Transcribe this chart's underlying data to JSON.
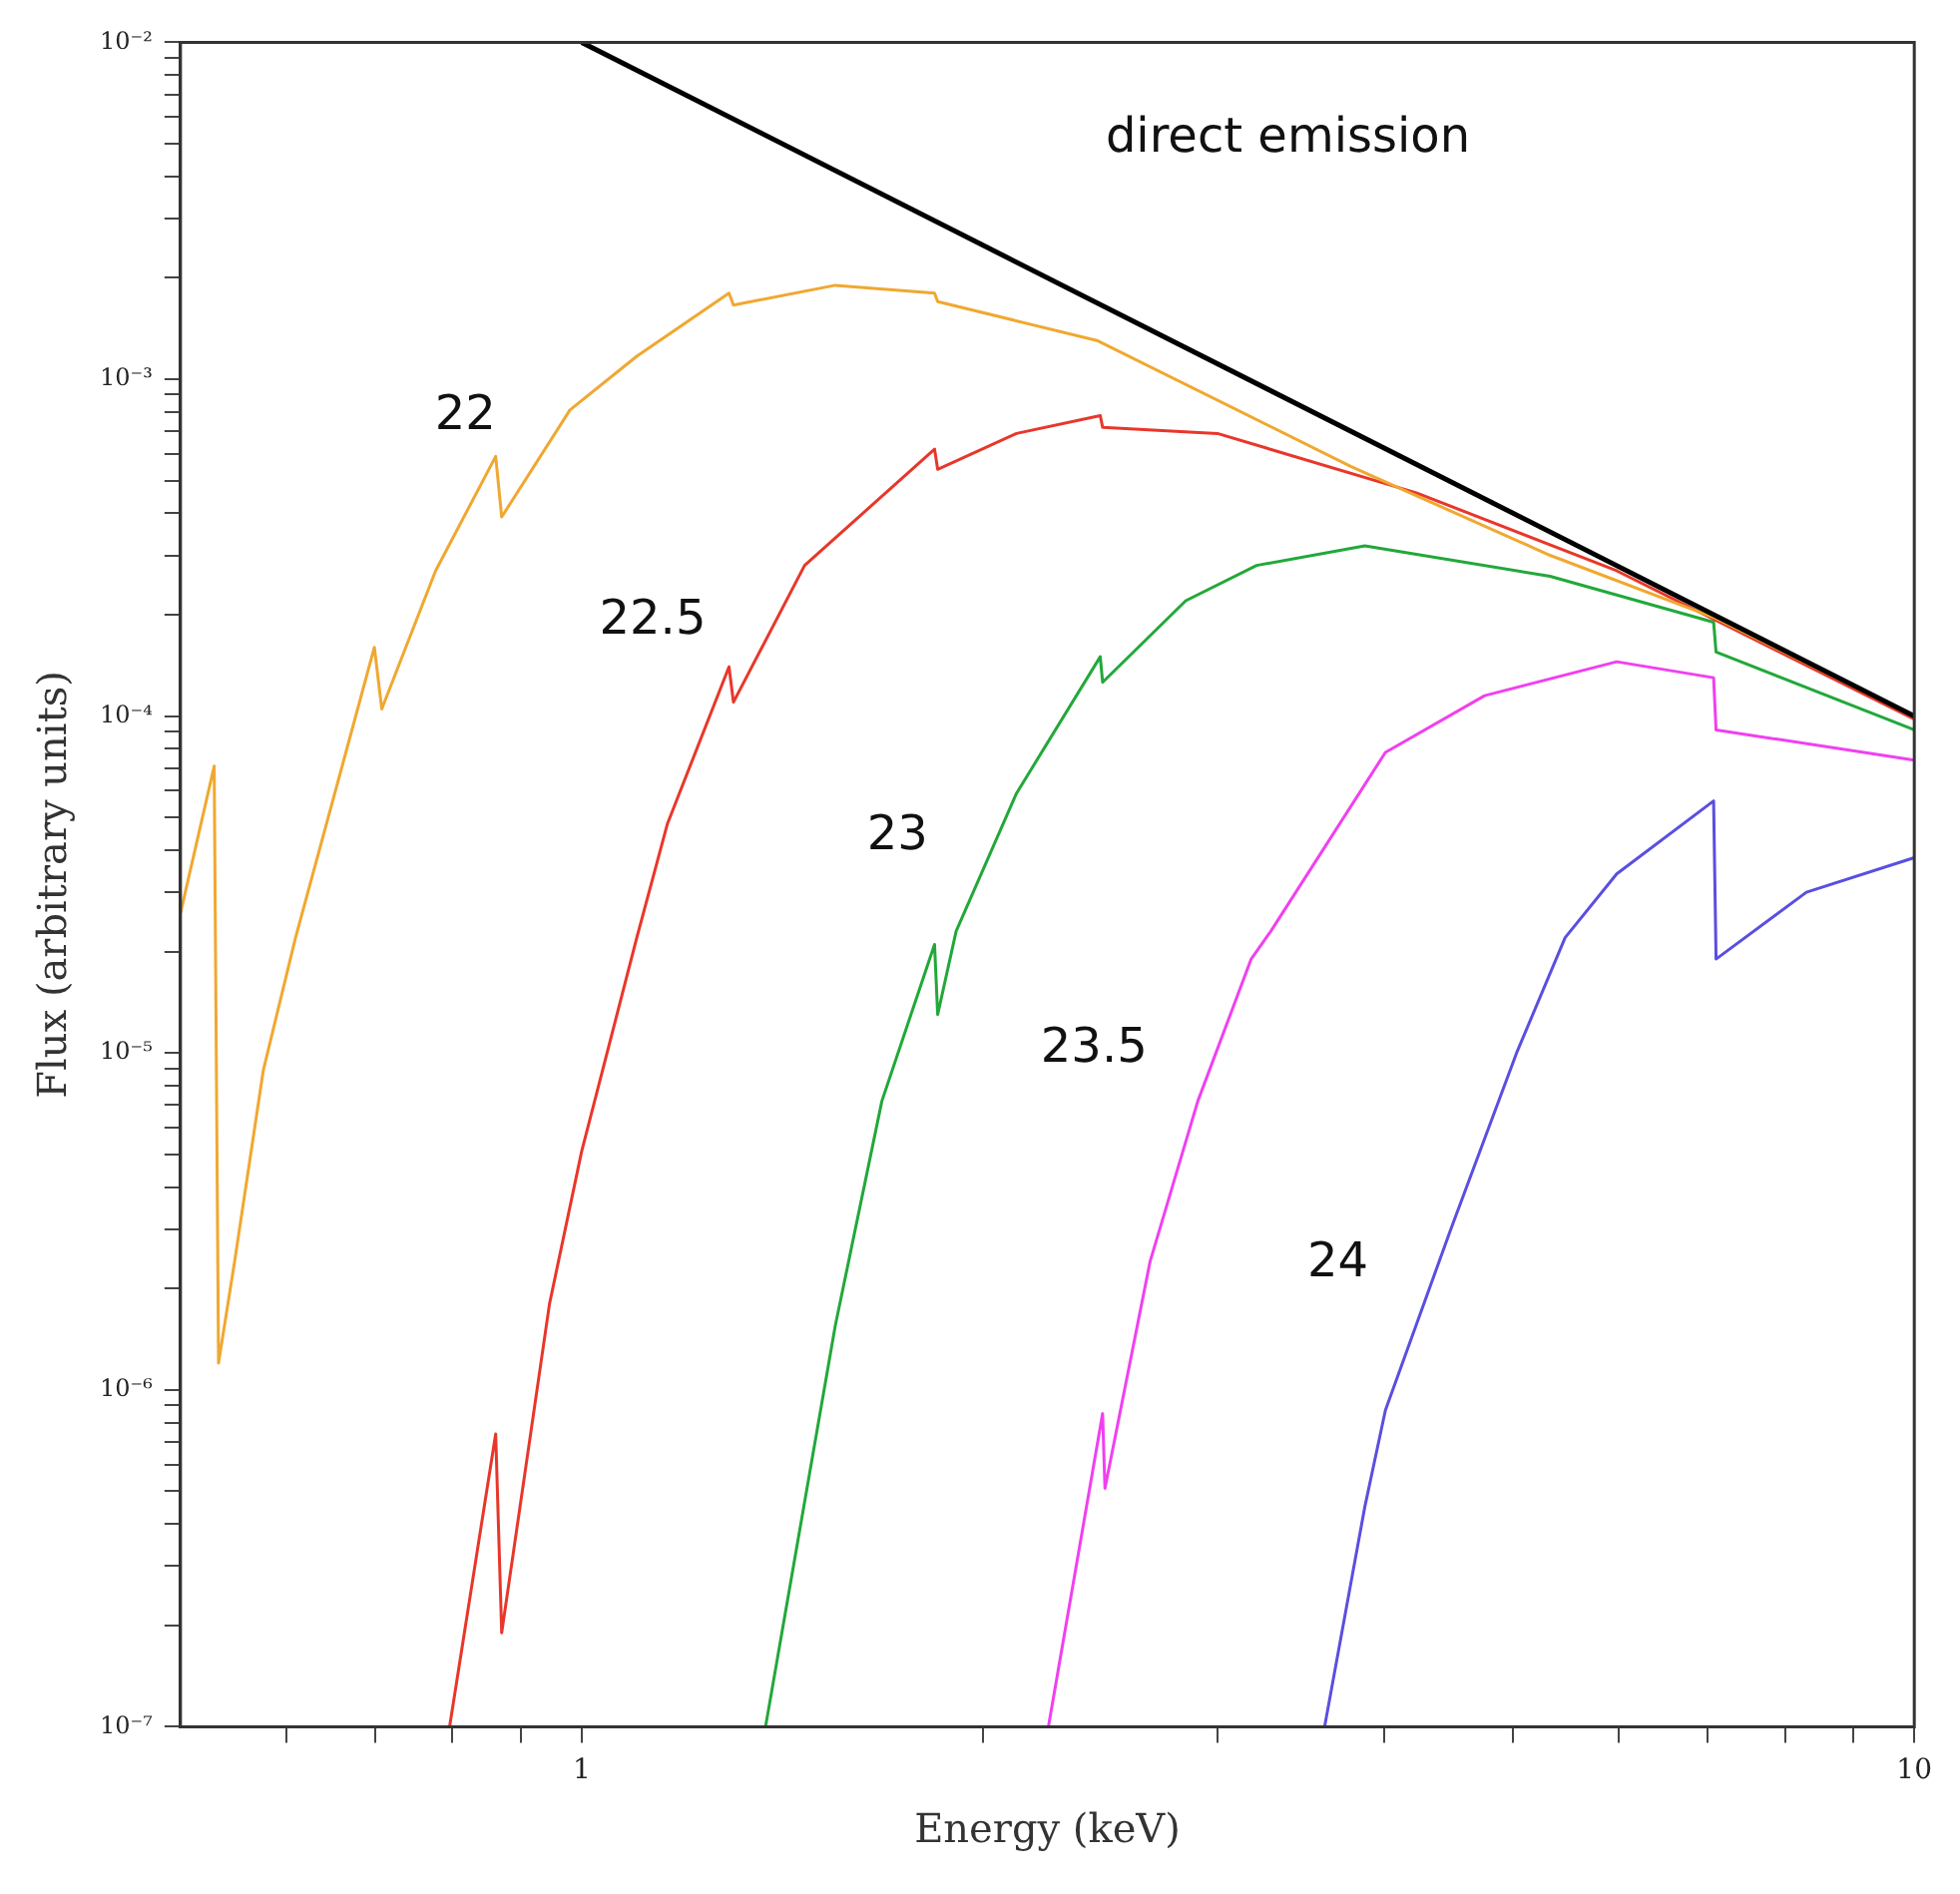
{
  "chart_data": {
    "type": "line",
    "xlabel": "Energy (keV)",
    "ylabel": "Flux (arbitrary units)",
    "log": "xy",
    "grid": false,
    "legend": false,
    "marker": "none",
    "line_style": "solid",
    "xlim": [
      0.5,
      10
    ],
    "ylim": [
      1e-07,
      0.01
    ],
    "xticks": [
      {
        "value": 0.6,
        "label": null
      },
      {
        "value": 0.7,
        "label": null
      },
      {
        "value": 0.8,
        "label": null
      },
      {
        "value": 0.9,
        "label": null
      },
      1,
      {
        "value": 2,
        "label": null
      },
      {
        "value": 3,
        "label": null
      },
      {
        "value": 4,
        "label": null
      },
      {
        "value": 5,
        "label": null
      },
      {
        "value": 6,
        "label": null
      },
      {
        "value": 7,
        "label": null
      },
      {
        "value": 8,
        "label": null
      },
      {
        "value": 9,
        "label": null
      },
      10
    ],
    "yticks": [
      {
        "value": 1e-07,
        "label": "10⁻⁷"
      },
      {
        "value": 2e-07,
        "label": null
      },
      {
        "value": 3e-07,
        "label": null
      },
      {
        "value": 4e-07,
        "label": null
      },
      {
        "value": 5e-07,
        "label": null
      },
      {
        "value": 6e-07,
        "label": null
      },
      {
        "value": 7e-07,
        "label": null
      },
      {
        "value": 8e-07,
        "label": null
      },
      {
        "value": 9e-07,
        "label": null
      },
      {
        "value": 1e-06,
        "label": "10⁻⁶"
      },
      {
        "value": 2e-06,
        "label": null
      },
      {
        "value": 3e-06,
        "label": null
      },
      {
        "value": 4e-06,
        "label": null
      },
      {
        "value": 5e-06,
        "label": null
      },
      {
        "value": 6e-06,
        "label": null
      },
      {
        "value": 7e-06,
        "label": null
      },
      {
        "value": 8e-06,
        "label": null
      },
      {
        "value": 9e-06,
        "label": null
      },
      {
        "value": 1e-05,
        "label": "10⁻⁵"
      },
      {
        "value": 2e-05,
        "label": null
      },
      {
        "value": 3e-05,
        "label": null
      },
      {
        "value": 4e-05,
        "label": null
      },
      {
        "value": 5e-05,
        "label": null
      },
      {
        "value": 6e-05,
        "label": null
      },
      {
        "value": 7e-05,
        "label": null
      },
      {
        "value": 8e-05,
        "label": null
      },
      {
        "value": 9e-05,
        "label": null
      },
      {
        "value": 0.0001,
        "label": "10⁻⁴"
      },
      {
        "value": 0.0002,
        "label": null
      },
      {
        "value": 0.0003,
        "label": null
      },
      {
        "value": 0.0004,
        "label": null
      },
      {
        "value": 0.0005,
        "label": null
      },
      {
        "value": 0.0006,
        "label": null
      },
      {
        "value": 0.0007,
        "label": null
      },
      {
        "value": 0.0008,
        "label": null
      },
      {
        "value": 0.0009,
        "label": null
      },
      {
        "value": 0.001,
        "label": "10⁻³"
      },
      {
        "value": 0.002,
        "label": null
      },
      {
        "value": 0.003,
        "label": null
      },
      {
        "value": 0.004,
        "label": null
      },
      {
        "value": 0.005,
        "label": null
      },
      {
        "value": 0.006,
        "label": null
      },
      {
        "value": 0.007,
        "label": null
      },
      {
        "value": 0.008,
        "label": null
      },
      {
        "value": 0.009,
        "label": null
      },
      {
        "value": 0.01,
        "label": "10⁻²"
      }
    ],
    "series": [
      {
        "name": "direct emission",
        "color": "#000000",
        "x": [
          1,
          10
        ],
        "values": [
          0.01,
          0.0001
        ]
      },
      {
        "name": "22",
        "color": "#f0a830",
        "x": [
          0.5,
          0.53,
          0.534,
          0.549,
          0.577,
          0.61,
          0.663,
          0.699,
          0.708,
          0.777,
          0.862,
          0.871,
          0.98,
          1.1,
          1.29,
          1.3,
          1.55,
          1.84,
          1.85,
          2.44,
          3.78,
          5.33,
          7.1,
          10
        ],
        "values": [
          2.6e-05,
          7.1e-05,
          1.2e-06,
          2.4e-06,
          8.9e-06,
          2.2e-05,
          7.4e-05,
          0.00016,
          0.000105,
          0.00027,
          0.00059,
          0.00039,
          0.00081,
          0.00117,
          0.0018,
          0.00166,
          0.0019,
          0.0018,
          0.0017,
          0.0013,
          0.00055,
          0.0003,
          0.000195,
          0.0001
        ]
      },
      {
        "name": "22.5",
        "color": "#e8372a",
        "x": [
          0.796,
          0.862,
          0.871,
          0.946,
          1.0,
          1.1,
          1.16,
          1.29,
          1.3,
          1.47,
          1.84,
          1.85,
          2.12,
          2.45,
          2.46,
          3.0,
          4.23,
          5.98,
          10
        ],
        "values": [
          1e-07,
          7.4e-07,
          1.9e-07,
          1.8e-06,
          5.1e-06,
          2.2e-05,
          4.8e-05,
          0.00014,
          0.00011,
          0.00028,
          0.00062,
          0.00054,
          0.00069,
          0.00078,
          0.00072,
          0.00069,
          0.00046,
          0.00027,
          9.8e-05
        ]
      },
      {
        "name": "23",
        "color": "#22a83a",
        "x": [
          1.374,
          1.55,
          1.68,
          1.84,
          1.85,
          1.91,
          2.12,
          2.45,
          2.46,
          2.84,
          3.21,
          3.87,
          5.33,
          7.07,
          7.1,
          10
        ],
        "values": [
          1e-07,
          1.55e-06,
          7.2e-06,
          2.1e-05,
          1.3e-05,
          2.3e-05,
          5.9e-05,
          0.00015,
          0.000126,
          0.00022,
          0.00028,
          0.00032,
          0.00026,
          0.00019,
          0.000155,
          9.1e-05
        ]
      },
      {
        "name": "23.5",
        "color": "#f040f0",
        "x": [
          2.24,
          2.46,
          2.47,
          2.67,
          2.9,
          3.18,
          3.29,
          4.01,
          4.76,
          5.98,
          7.07,
          7.1,
          10
        ],
        "values": [
          1e-07,
          8.5e-07,
          5.1e-07,
          2.4e-06,
          7.2e-06,
          1.9e-05,
          2.3e-05,
          7.8e-05,
          0.000115,
          0.000145,
          0.00013,
          9.1e-05,
          7.4e-05
        ]
      },
      {
        "name": "24",
        "color": "#5a4fe0",
        "x": [
          3.61,
          3.87,
          4.01,
          4.49,
          5.03,
          5.47,
          5.98,
          7.07,
          7.1,
          8.3,
          10
        ],
        "values": [
          1e-07,
          4.5e-07,
          8.7e-07,
          3e-06,
          1e-05,
          2.2e-05,
          3.4e-05,
          5.6e-05,
          1.9e-05,
          3e-05,
          3.8e-05
        ]
      }
    ]
  }
}
